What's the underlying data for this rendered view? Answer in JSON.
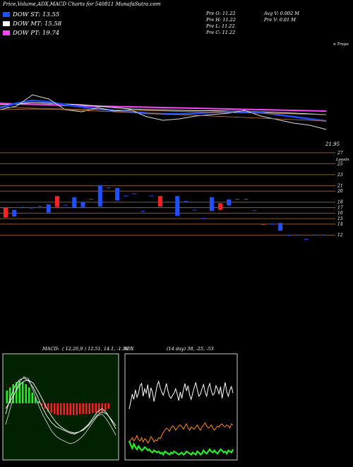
{
  "header": {
    "title": "Price,Volume,ADX,MACD Charts for 540811 MunafaSutra.com",
    "legend": [
      {
        "label": "DOW ST: 13.55",
        "color": "#1e50ff"
      },
      {
        "label": "DOW MT: 15.58",
        "color": "#ffffff"
      },
      {
        "label": "DOW PT: 19.74",
        "color": "#ff44ff"
      }
    ],
    "ohlc": [
      "Pre  O: 11.22",
      "Pre  H: 11.22",
      "Pre  L: 11.22",
      "Pre  C: 11.22"
    ],
    "volume_info": [
      "Avg V: 0.002  M",
      "Pre  V: 0.01 M"
    ],
    "top_label": "n Trepo",
    "mid_label": "Loosin",
    "last_price": "21.95"
  },
  "chart_data": [
    {
      "type": "line",
      "name": "price-with-averages",
      "series": [
        {
          "name": "DOW PT",
          "color": "#ff44ff",
          "values": [
            23.4,
            23.3,
            23.25,
            23.2,
            23.1,
            23.05,
            23.0,
            22.95,
            22.9,
            22.85,
            22.8,
            22.75,
            22.7,
            22.65,
            22.6,
            22.55,
            22.5,
            22.45,
            22.4,
            22.35,
            22.3
          ]
        },
        {
          "name": "DOW MT",
          "color": "#ffffff",
          "values": [
            23.2,
            23.3,
            23.5,
            23.4,
            23.3,
            23.2,
            23.0,
            22.8,
            22.6,
            22.5,
            22.45,
            22.4,
            22.35,
            22.35,
            22.3,
            22.3,
            22.2,
            22.1,
            22.0,
            21.9,
            21.8
          ]
        },
        {
          "name": "DOW ST",
          "color": "#1e50ff",
          "values": [
            22.8,
            23.4,
            23.8,
            23.6,
            23.2,
            22.9,
            22.6,
            22.4,
            22.2,
            22.0,
            21.9,
            21.9,
            22.0,
            22.1,
            22.2,
            22.2,
            22.1,
            21.8,
            21.5,
            21.2,
            20.9
          ]
        },
        {
          "name": "",
          "color": "#d9d9d9",
          "values": [
            22.5,
            23.0,
            24.6,
            24.0,
            22.5,
            22.2,
            22.8,
            22.3,
            22.5,
            21.5,
            21.0,
            21.2,
            21.6,
            21.8,
            22.0,
            22.4,
            21.6,
            21.1,
            20.6,
            20.3,
            19.7
          ]
        }
      ],
      "ylim": [
        18,
        26
      ]
    },
    {
      "type": "bar",
      "name": "candles",
      "y_ticks": [
        27,
        25,
        23,
        21,
        20,
        18,
        17,
        16,
        15,
        14,
        12
      ],
      "ylim": [
        11,
        27.5
      ],
      "candles": [
        {
          "o": 17.0,
          "c": 15.2,
          "color": "#ff2020"
        },
        {
          "o": 16.6,
          "c": 15.4,
          "color": "#1e50ff"
        },
        {
          "o": 17.1,
          "c": 17.0,
          "color": "#1e50ff"
        },
        {
          "o": 17.0,
          "c": 17.0,
          "color": "#1e50ff"
        },
        {
          "o": 17.3,
          "c": 17.2,
          "color": "#1e50ff"
        },
        {
          "o": 16.1,
          "c": 17.6,
          "color": "#1e50ff"
        },
        {
          "o": 19.1,
          "c": 17.1,
          "color": "#ff2020"
        },
        {
          "o": 17.5,
          "c": 17.4,
          "color": "#1e50ff"
        },
        {
          "o": 17.0,
          "c": 18.9,
          "color": "#1e50ff"
        },
        {
          "o": 18.0,
          "c": 17.1,
          "color": "#1e50ff"
        },
        {
          "o": 18.6,
          "c": 18.5,
          "color": "#1e50ff"
        },
        {
          "o": 21.1,
          "c": 17.2,
          "color": "#1e50ff"
        },
        {
          "o": 20.7,
          "c": 20.6,
          "color": "#1e50ff"
        },
        {
          "o": 20.6,
          "c": 18.3,
          "color": "#1e50ff"
        },
        {
          "o": 19.2,
          "c": 19.2,
          "color": "#1e50ff"
        },
        {
          "o": 19.6,
          "c": 19.5,
          "color": "#1e50ff"
        },
        {
          "o": 16.4,
          "c": 16.3,
          "color": "#1e50ff"
        },
        {
          "o": 19.2,
          "c": 19.1,
          "color": "#1e50ff"
        },
        {
          "o": 19.1,
          "c": 17.2,
          "color": "#ff2020"
        },
        {
          "o": 18.1,
          "c": 18.0,
          "color": "#1e50ff"
        },
        {
          "o": 19.1,
          "c": 15.5,
          "color": "#1e50ff"
        },
        {
          "o": 18.2,
          "c": 18.1,
          "color": "#1e50ff"
        },
        {
          "o": 16.6,
          "c": 16.5,
          "color": "#1e50ff"
        },
        {
          "o": 15.1,
          "c": 15.0,
          "color": "#1e50ff"
        },
        {
          "o": 18.9,
          "c": 16.4,
          "color": "#1e50ff"
        },
        {
          "o": 17.8,
          "c": 16.6,
          "color": "#ff2020"
        },
        {
          "o": 17.4,
          "c": 18.5,
          "color": "#1e50ff"
        },
        {
          "o": 18.6,
          "c": 18.5,
          "color": "#1e50ff"
        },
        {
          "o": 18.6,
          "c": 18.5,
          "color": "#1e50ff"
        },
        {
          "o": 16.5,
          "c": 16.4,
          "color": "#1e50ff"
        },
        {
          "o": 14.0,
          "c": 13.9,
          "color": "#ff2020"
        },
        {
          "o": 14.1,
          "c": 14.0,
          "color": "#1e50ff"
        },
        {
          "o": 14.2,
          "c": 12.8,
          "color": "#1e50ff"
        },
        {
          "o": 12.0,
          "c": 11.9,
          "color": "#1e50ff"
        },
        {
          "o": 12.1,
          "c": 12.0,
          "color": "#1e50ff"
        },
        {
          "o": 11.3,
          "c": 11.2,
          "color": "#1e50ff"
        },
        {
          "o": 12.1,
          "c": 12.0,
          "color": "#1e50ff"
        },
        {
          "o": 12.1,
          "c": 12.0,
          "color": "#1e50ff"
        }
      ]
    },
    {
      "type": "line",
      "name": "macd",
      "label": "MACD",
      "params": "( 12,26,9 ) 12.51,  14.1,  -1.59",
      "histogram": [
        1.2,
        1.5,
        1.8,
        2.0,
        2.1,
        2.0,
        1.8,
        1.5,
        1.0,
        0.6,
        0.2,
        -0.2,
        -0.5,
        -0.8,
        -0.9,
        -1.0,
        -1.1,
        -1.1,
        -1.1,
        -1.1,
        -1.1,
        -1.1,
        -1.1,
        -1.0,
        -1.0,
        -1.0,
        -1.0,
        -0.9,
        -0.9,
        -0.9,
        -0.8,
        -0.7,
        -0.5
      ],
      "lines": [
        [
          -1,
          0.5,
          1.6,
          2.2,
          2.4,
          2.1,
          1.5,
          0.6,
          -0.4,
          -1.2,
          -1.8,
          -2.2,
          -2.4,
          -2.6,
          -2.8,
          -2.9,
          -2.7,
          -2.4,
          -2.0,
          -1.4,
          -0.8,
          -0.5,
          -0.9,
          -1.6,
          -2.4
        ],
        [
          -0.5,
          0.2,
          1.0,
          1.7,
          2.1,
          2.2,
          1.9,
          1.2,
          0.4,
          -0.5,
          -1.2,
          -1.8,
          -2.2,
          -2.5,
          -2.7,
          -2.8,
          -2.7,
          -2.5,
          -2.1,
          -1.6,
          -1.1,
          -0.8,
          -1.0,
          -1.5,
          -2.1
        ],
        [
          -2,
          -0.5,
          1.0,
          2.0,
          2.5,
          2.3,
          1.2,
          0.0,
          -1.0,
          -1.8,
          -2.6,
          -3.1,
          -3.4,
          -3.6,
          -3.8,
          -3.7,
          -3.4,
          -3.0,
          -2.4,
          -1.8,
          -1.2,
          -1.0,
          -1.5,
          -2.2,
          -3.0
        ]
      ],
      "ylim": [
        -5,
        5
      ]
    },
    {
      "type": "line",
      "name": "adx",
      "label": "ADX",
      "params": "(14  day) 38,  -25,  -53",
      "series": [
        {
          "name": "",
          "color": "#ffffff",
          "values": [
            48,
            55,
            62,
            57,
            66,
            59,
            63,
            70,
            72,
            60,
            67,
            63,
            71,
            58,
            68,
            64,
            55,
            62,
            70,
            74,
            68,
            64,
            61,
            66,
            72,
            65,
            60,
            58,
            61,
            63,
            67,
            62,
            56,
            64,
            58,
            66,
            72,
            65,
            70,
            61,
            57,
            63,
            68,
            73,
            66,
            60,
            62,
            67,
            71,
            64,
            60,
            68,
            72,
            65,
            61,
            63,
            70,
            67,
            62,
            69,
            58,
            66,
            73,
            64,
            60,
            66,
            69,
            63
          ]
        },
        {
          "name": "",
          "color": "#ff8c00",
          "values": [
            16,
            19,
            21,
            18,
            20,
            23,
            19,
            18,
            21,
            17,
            20,
            19,
            16,
            18,
            22,
            20,
            17,
            19,
            18,
            21,
            20,
            23,
            26,
            28,
            30,
            29,
            27,
            30,
            32,
            31,
            28,
            30,
            32,
            33,
            31,
            29,
            32,
            34,
            30,
            28,
            31,
            30,
            29,
            31,
            33,
            30,
            28,
            31,
            33,
            35,
            32,
            30,
            31,
            33,
            30,
            28,
            30,
            32,
            31,
            33,
            34,
            32,
            31,
            33,
            32,
            30,
            34,
            33
          ]
        },
        {
          "name": "",
          "color": "#22ee22",
          "values": [
            18,
            14,
            11,
            15,
            12,
            10,
            13,
            11,
            9,
            10,
            12,
            11,
            9,
            10,
            8,
            7,
            9,
            8,
            7,
            8,
            6,
            7,
            5,
            8,
            7,
            6,
            5,
            7,
            6,
            8,
            7,
            6,
            5,
            6,
            7,
            5,
            6,
            8,
            7,
            6,
            5,
            7,
            6,
            5,
            8,
            7,
            5,
            6,
            9,
            7,
            6,
            8,
            10,
            8,
            7,
            9,
            7,
            6,
            8,
            10,
            9,
            7,
            8,
            6,
            9,
            8,
            7,
            10
          ]
        }
      ],
      "ylim": [
        0,
        100
      ]
    }
  ]
}
